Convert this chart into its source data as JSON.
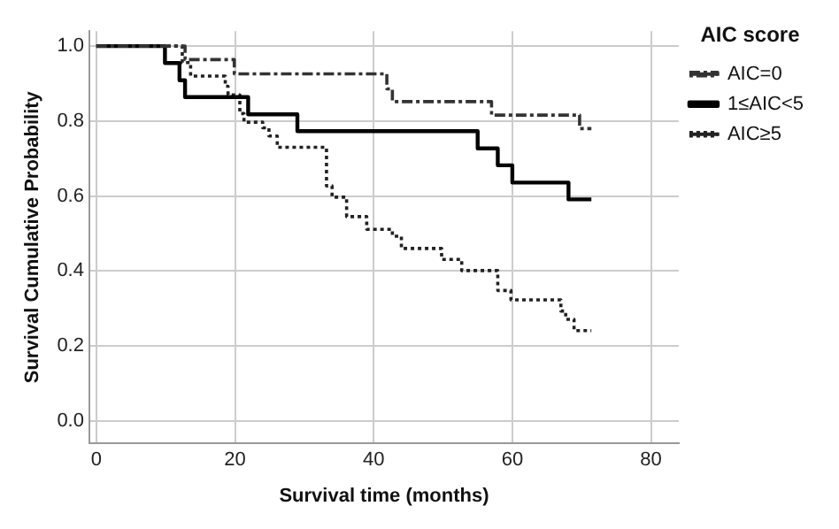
{
  "chart_data": {
    "type": "step",
    "xlabel": "Survival time (months)",
    "ylabel": "Survival Cumulative Probability",
    "legend_title": "AIC score",
    "legend": "right",
    "grid": true,
    "xlim": [
      -1,
      84
    ],
    "xticks": [
      0,
      20,
      40,
      60,
      80
    ],
    "ylim": [
      -0.06,
      1.04
    ],
    "yticks": [
      {
        "value": 0,
        "label": "0.0"
      },
      0.2,
      0.4,
      0.6,
      0.8,
      {
        "value": 1,
        "label": "1.0"
      }
    ],
    "series": [
      {
        "name": "AIC=0",
        "color": "#333333",
        "line_style": "dashed",
        "x": [
          0,
          12.8,
          19.9,
          41.9,
          42.7,
          57,
          69.7,
          71.4
        ],
        "values": [
          1,
          0.964,
          0.926,
          0.886,
          0.852,
          0.816,
          0.78,
          0.78
        ]
      },
      {
        "name": "1≤AIC<5",
        "color": "#000000",
        "line_style": "solid",
        "x": [
          0,
          9.9,
          12,
          12.8,
          21.9,
          29,
          55,
          57.9,
          60,
          68.1,
          71.4
        ],
        "values": [
          1,
          0.955,
          0.909,
          0.864,
          0.818,
          0.773,
          0.727,
          0.682,
          0.636,
          0.591,
          0.591
        ]
      },
      {
        "name": "AIC≥5",
        "color": "#222222",
        "line_style": "dotted",
        "x": [
          0,
          12.4,
          13.6,
          18.6,
          19,
          20.7,
          21.3,
          24,
          24.9,
          26.1,
          33.2,
          34,
          36.1,
          39,
          42.7,
          44,
          49.8,
          52.7,
          57.9,
          59.8,
          67,
          67.7,
          68.9,
          71.4
        ],
        "values": [
          1,
          0.956,
          0.92,
          0.893,
          0.87,
          0.82,
          0.797,
          0.782,
          0.76,
          0.73,
          0.627,
          0.597,
          0.545,
          0.511,
          0.493,
          0.46,
          0.431,
          0.401,
          0.348,
          0.323,
          0.293,
          0.271,
          0.241,
          0.241
        ]
      }
    ]
  }
}
